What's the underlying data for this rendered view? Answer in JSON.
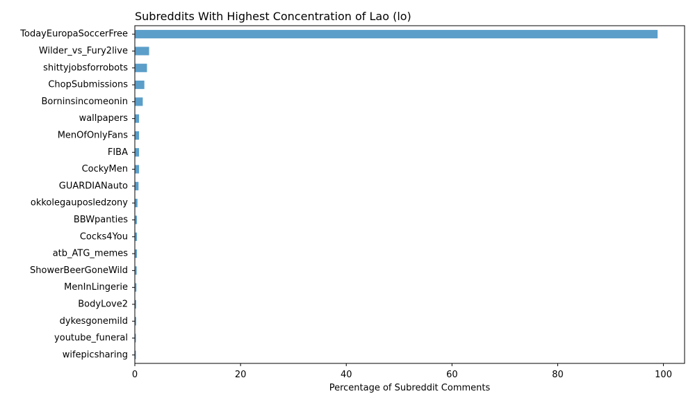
{
  "chart_data": {
    "type": "bar",
    "orientation": "horizontal",
    "title": "Subreddits With Highest Concentration of Lao (lo)",
    "xlabel": "Percentage of Subreddit Comments",
    "ylabel": "",
    "xlim": [
      0,
      104
    ],
    "xticks": [
      0,
      20,
      40,
      60,
      80,
      100
    ],
    "grid": false,
    "legend": "none",
    "bar_color": "#5b9ec9",
    "categories": [
      "TodayEuropaSoccerFree",
      "Wilder_vs_Fury2live",
      "shittyjobsforrobots",
      "ChopSubmissions",
      "Borninsincomeonin",
      "wallpapers",
      "MenOfOnlyFans",
      "FIBA",
      "CockyMen",
      "GUARDIANauto",
      "okkolegauposledzony",
      "BBWpanties",
      "Cocks4You",
      "atb_ATG_memes",
      "ShowerBeerGoneWild",
      "MenInLingerie",
      "BodyLove2",
      "dykesgonemild",
      "youtube_funeral",
      "wifepicsharing"
    ],
    "values": [
      98.9,
      2.7,
      2.3,
      1.8,
      1.5,
      0.8,
      0.8,
      0.8,
      0.8,
      0.7,
      0.5,
      0.4,
      0.4,
      0.4,
      0.35,
      0.3,
      0.25,
      0.25,
      0.2,
      0.2
    ]
  }
}
